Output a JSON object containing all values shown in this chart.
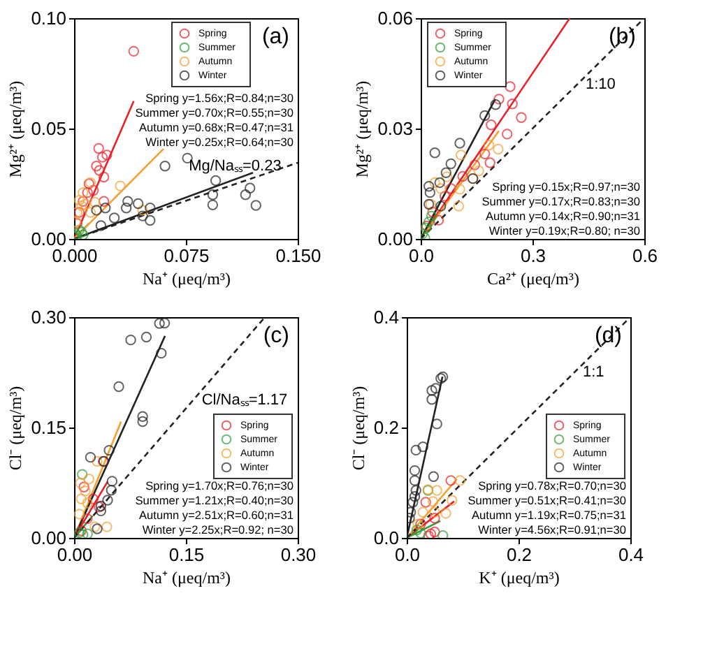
{
  "chart_data": [
    {
      "type": "scatter",
      "xlabel": "Na⁺ (μeq/m³)",
      "ylabel": "Mg²⁺ (μeq/m³)",
      "xlim": [
        0,
        0.15
      ],
      "ylim": [
        0,
        0.1
      ],
      "xticks": [
        {
          "value": 0,
          "label": "0.000"
        },
        {
          "value": 0.075,
          "label": "0.075"
        },
        {
          "value": 0.15,
          "label": "0.150"
        }
      ],
      "yticks": [
        {
          "value": 0,
          "label": "0.00"
        },
        {
          "value": 0.05,
          "label": "0.05"
        },
        {
          "value": 0.1,
          "label": "0.10"
        }
      ],
      "legend": "top right",
      "grid": false,
      "annotations": [
        "(a)",
        "Spring y=1.56x;R=0.84;n=30",
        "Summer y=0.70x;R=0.55;n=30",
        "Autumn y=0.68x;R=0.47;n=31",
        "Winter y=0.25x;R=0.64;n=30",
        {
          "text": "Mg/Naₛₛ=0.23",
          "x": 0.108,
          "y": 0.0248
        }
      ],
      "series": [
        {
          "name": "Spring",
          "marker": "circle",
          "color": "#e8202a",
          "x": [
            0.04,
            0.0165,
            0.019,
            0.022,
            0.015,
            0.017,
            0.02,
            0.01,
            0.009,
            0.006,
            0.02,
            0.0035,
            0.013,
            0.002
          ],
          "values": [
            0.085,
            0.041,
            0.037,
            0.038,
            0.033,
            0.031,
            0.028,
            0.025,
            0.021,
            0.017,
            0.017,
            0.012,
            0.022,
            0.007
          ]
        },
        {
          "name": "Summer",
          "marker": "circle",
          "color": "#2e9e3a",
          "x": [
            0.001,
            0.002,
            0.005,
            0.0035,
            0.006
          ],
          "values": [
            0.0023,
            0.0014,
            0.003,
            0.004,
            0.0018
          ]
        },
        {
          "name": "Autumn",
          "marker": "circle",
          "color": "#f5a030",
          "x": [
            0.031,
            0.011,
            0.006,
            0.0035,
            0.0075,
            0.014,
            0.046,
            0.002,
            0.011,
            0.0013,
            0.005
          ],
          "values": [
            0.024,
            0.0255,
            0.021,
            0.0175,
            0.0157,
            0.0166,
            0.013,
            0.012,
            0.012,
            0.0077,
            0.015
          ]
        },
        {
          "name": "Winter",
          "marker": "circle",
          "color": "#222222",
          "x": [
            0.061,
            0.076,
            0.095,
            0.093,
            0.093,
            0.118,
            0.115,
            0.122,
            0.036,
            0.043,
            0.035,
            0.051,
            0.051,
            0.046,
            0.027,
            0.018,
            0.015,
            0.021
          ],
          "values": [
            0.033,
            0.0366,
            0.0264,
            0.02,
            0.0154,
            0.023,
            0.02,
            0.0152,
            0.017,
            0.016,
            0.014,
            0.014,
            0.0084,
            0.0104,
            0.0095,
            0.006,
            0.013,
            0.014
          ]
        },
        {
          "type": "line",
          "color": "#e8202a",
          "x": [
            0,
            0.04
          ],
          "values": [
            0,
            0.0624
          ]
        },
        {
          "type": "line",
          "color": "#2e9e3a",
          "x": [
            0,
            0.01
          ],
          "values": [
            0,
            0.007
          ]
        },
        {
          "type": "line",
          "color": "#f5a030",
          "x": [
            0,
            0.06
          ],
          "values": [
            0,
            0.0408
          ]
        },
        {
          "type": "line",
          "color": "#222222",
          "x": [
            0,
            0.12
          ],
          "values": [
            0,
            0.03
          ]
        },
        {
          "type": "line",
          "line_style": "dashed",
          "color": "#222222",
          "x": [
            0,
            0.15
          ],
          "values": [
            0,
            0.0345
          ]
        }
      ]
    },
    {
      "type": "scatter",
      "xlabel": "Ca²⁺ (μeq/m³)",
      "ylabel": "Mg²⁺ (μeq/m³)",
      "xlim": [
        0,
        0.6
      ],
      "ylim": [
        0,
        0.06
      ],
      "xticks": [
        {
          "value": 0,
          "label": "0.0"
        },
        {
          "value": 0.3,
          "label": "0.3"
        },
        {
          "value": 0.6,
          "label": "0.6"
        }
      ],
      "yticks": [
        {
          "value": 0,
          "label": "0.00"
        },
        {
          "value": 0.03,
          "label": "0.03"
        },
        {
          "value": 0.06,
          "label": "0.06"
        }
      ],
      "legend": "top left",
      "grid": false,
      "annotations": [
        "(b)",
        "Spring y=0.15x;R=0.97;n=30",
        "Summer y=0.17x;R=0.83;n=30",
        "Autumn y=0.14x;R=0.90;n=31",
        "Winter y=0.19x;R=0.80; n=30",
        {
          "text": "1:10",
          "x": 0.42,
          "y": 0.042
        }
      ],
      "series": [
        {
          "name": "Spring",
          "marker": "circle",
          "color": "#e8202a",
          "x": [
            0.24,
            0.246,
            0.21,
            0.27,
            0.232,
            0.189,
            0.172,
            0.186,
            0.145,
            0.113,
            0.081,
            0.065,
            0.032,
            0.048,
            0.016
          ],
          "values": [
            0.0414,
            0.0367,
            0.038,
            0.033,
            0.0285,
            0.031,
            0.0231,
            0.0207,
            0.0201,
            0.017,
            0.0137,
            0.0116,
            0.0073,
            0.0051,
            0.0035
          ]
        },
        {
          "name": "Summer",
          "marker": "circle",
          "color": "#2e9e3a",
          "x": [
            0.005,
            0.014,
            0.022,
            0.029,
            0.011
          ],
          "values": [
            0.0014,
            0.003,
            0.0046,
            0.0062,
            0.0003
          ]
        },
        {
          "name": "Autumn",
          "marker": "circle",
          "color": "#f5a030",
          "x": [
            0.208,
            0.183,
            0.156,
            0.14,
            0.108,
            0.105,
            0.07,
            0.054,
            0.038,
            0.027,
            0.102
          ],
          "values": [
            0.0244,
            0.0255,
            0.0185,
            0.0164,
            0.0228,
            0.0135,
            0.0169,
            0.0137,
            0.0153,
            0.0094,
            0.0089
          ]
        },
        {
          "name": "Winter",
          "marker": "circle",
          "color": "#222222",
          "x": [
            0.201,
            0.172,
            0.105,
            0.038,
            0.081,
            0.022,
            0.025,
            0.051,
            0.14,
            0.022,
            0.068,
            0.054
          ],
          "values": [
            0.0365,
            0.0335,
            0.026,
            0.0234,
            0.0204,
            0.0143,
            0.0126,
            0.0153,
            0.0164,
            0.0094,
            0.018,
            0.0089
          ]
        },
        {
          "type": "line",
          "color": "#e8202a",
          "x": [
            0,
            0.4
          ],
          "values": [
            0,
            0.06
          ]
        },
        {
          "type": "line",
          "color": "#2e9e3a",
          "x": [
            0,
            0.04
          ],
          "values": [
            0,
            0.0068
          ]
        },
        {
          "type": "line",
          "color": "#f5a030",
          "x": [
            0,
            0.21
          ],
          "values": [
            0,
            0.0294
          ]
        },
        {
          "type": "line",
          "color": "#222222",
          "x": [
            0,
            0.2
          ],
          "values": [
            0,
            0.038
          ]
        },
        {
          "type": "line",
          "line_style": "dashed",
          "color": "#222222",
          "x": [
            0,
            0.6
          ],
          "values": [
            0,
            0.06
          ]
        }
      ]
    },
    {
      "type": "scatter",
      "xlabel": "Na⁺ (μeq/m³)",
      "ylabel": "Cl⁻ (μeq/m³)",
      "xlim": [
        0,
        0.3
      ],
      "ylim": [
        0,
        0.3
      ],
      "xticks": [
        {
          "value": 0,
          "label": "0.00"
        },
        {
          "value": 0.15,
          "label": "0.15"
        },
        {
          "value": 0.3,
          "label": "0.30"
        }
      ],
      "yticks": [
        {
          "value": 0,
          "label": "0.00"
        },
        {
          "value": 0.15,
          "label": "0.15"
        },
        {
          "value": 0.3,
          "label": "0.30"
        }
      ],
      "legend": "right",
      "grid": false,
      "annotations": [
        "(c)",
        "Spring y=1.70x;R=0.76;n=30",
        "Summer y=1.21x;R=0.40;n=30",
        "Autumn y=2.51x;R=0.60;n=31",
        "Winter y=2.25x;R=0.92; n=30",
        {
          "text": "Cl/Naₛₛ=1.17",
          "x": 0.16,
          "y": 0.1872
        }
      ],
      "series": [
        {
          "name": "Spring",
          "marker": "circle",
          "color": "#e8202a",
          "x": [
            0.0133,
            0.0256,
            0.0336,
            0.0176,
            0.0096,
            0.039
          ],
          "values": [
            0.069,
            0.0529,
            0.042,
            0.026,
            0.0097,
            0.104
          ]
        },
        {
          "name": "Summer",
          "marker": "circle",
          "color": "#2e9e3a",
          "x": [
            0.011,
            0.007,
            0.012,
            0.018
          ],
          "values": [
            0.0863,
            0.007,
            0.0043,
            0.0054
          ]
        },
        {
          "name": "Autumn",
          "marker": "circle",
          "color": "#f5a030",
          "x": [
            0.031,
            0.0085,
            0.0096,
            0.015,
            0.028,
            0.044,
            0.02,
            0.007,
            0.018
          ],
          "values": [
            0.104,
            0.0745,
            0.0529,
            0.0637,
            0.0151,
            0.0151,
            0.08,
            0.0324,
            0.0475
          ]
        },
        {
          "name": "Winter",
          "marker": "circle",
          "color": "#222222",
          "x": [
            0.1145,
            0.1215,
            0.076,
            0.097,
            0.117,
            0.06,
            0.092,
            0.092,
            0.022,
            0.047,
            0.051,
            0.05,
            0.045,
            0.036,
            0.036,
            0.04,
            0.031
          ],
          "values": [
            0.2914,
            0.292,
            0.269,
            0.273,
            0.251,
            0.2056,
            0.165,
            0.158,
            0.1095,
            0.119,
            0.077,
            0.0648,
            0.0513,
            0.0432,
            0.0367,
            0.104,
            0.0124
          ]
        },
        {
          "type": "line",
          "color": "#e8202a",
          "x": [
            0,
            0.045
          ],
          "values": [
            0,
            0.0765
          ]
        },
        {
          "type": "line",
          "color": "#2e9e3a",
          "x": [
            0,
            0.025
          ],
          "values": [
            0,
            0.03
          ]
        },
        {
          "type": "line",
          "color": "#f5a030",
          "x": [
            0,
            0.063
          ],
          "values": [
            0,
            0.158
          ]
        },
        {
          "type": "line",
          "color": "#222222",
          "x": [
            0,
            0.122
          ],
          "values": [
            0,
            0.2745
          ]
        },
        {
          "type": "line",
          "line_style": "dashed",
          "color": "#222222",
          "x": [
            0,
            0.256
          ],
          "values": [
            0,
            0.3
          ]
        }
      ]
    },
    {
      "type": "scatter",
      "xlabel": "K⁺ (μeq/m³)",
      "ylabel": "Cl⁻ (μeq/m³)",
      "xlim": [
        0,
        0.4
      ],
      "ylim": [
        0,
        0.4
      ],
      "xticks": [
        {
          "value": 0,
          "label": "0.0"
        },
        {
          "value": 0.2,
          "label": "0.2"
        },
        {
          "value": 0.4,
          "label": "0.4"
        }
      ],
      "yticks": [
        {
          "value": 0,
          "label": "0.0"
        },
        {
          "value": 0.2,
          "label": "0.2"
        },
        {
          "value": 0.4,
          "label": "0.4"
        }
      ],
      "legend": "right",
      "grid": false,
      "annotations": [
        "(d)",
        "Spring y=0.78x;R=0.70;n=30",
        "Summer y=0.51x;R=0.41;n=30",
        "Autumn y=1.19x;R=0.75;n=31",
        "Winter y=4.56x;R=0.91;n=30",
        {
          "text": "1:1",
          "x": 0.3,
          "y": 0.3
        }
      ],
      "series": [
        {
          "name": "Spring",
          "marker": "circle",
          "color": "#e8202a",
          "x": [
            0.079,
            0.05,
            0.043,
            0.05,
            0.034,
            0.025,
            0.039
          ],
          "values": [
            0.104,
            0.0358,
            0.0072,
            0.0108,
            0.0645,
            0.025,
            0.0036
          ]
        },
        {
          "name": "Summer",
          "marker": "circle",
          "color": "#2e9e3a",
          "x": [
            0.038,
            0.0646,
            0.018,
            0.025
          ],
          "values": [
            0.086,
            0.0043,
            0.0143,
            0.0086
          ]
        },
        {
          "name": "Autumn",
          "marker": "circle",
          "color": "#f5a030",
          "x": [
            0.0955,
            0.054,
            0.038,
            0.047,
            0.081,
            0.07,
            0.029,
            0.02,
            0.05
          ],
          "values": [
            0.104,
            0.086,
            0.0875,
            0.066,
            0.068,
            0.0444,
            0.0466,
            0.025,
            0.0466
          ]
        },
        {
          "name": "Winter",
          "marker": "circle",
          "color": "#222222",
          "x": [
            0.0646,
            0.061,
            0.045,
            0.052,
            0.045,
            0.054,
            0.029,
            0.0165,
            0.048,
            0.0144,
            0.0144,
            0.0165,
            0.011,
            0.007,
            0.005,
            0.0144
          ],
          "values": [
            0.2917,
            0.289,
            0.267,
            0.271,
            0.251,
            0.2065,
            0.165,
            0.159,
            0.111,
            0.122,
            0.104,
            0.086,
            0.0645,
            0.0466,
            0.0358,
            0.075
          ]
        },
        {
          "type": "line",
          "color": "#e8202a",
          "x": [
            0,
            0.085
          ],
          "values": [
            0,
            0.0663
          ]
        },
        {
          "type": "line",
          "color": "#2e9e3a",
          "x": [
            0,
            0.06
          ],
          "values": [
            0,
            0.0306
          ]
        },
        {
          "type": "line",
          "color": "#f5a030",
          "x": [
            0,
            0.09
          ],
          "values": [
            0,
            0.107
          ]
        },
        {
          "type": "line",
          "color": "#222222",
          "x": [
            0,
            0.064
          ],
          "values": [
            0,
            0.292
          ]
        },
        {
          "type": "line",
          "line_style": "dashed",
          "color": "#222222",
          "x": [
            0,
            0.4
          ],
          "values": [
            0,
            0.4
          ]
        }
      ]
    }
  ]
}
